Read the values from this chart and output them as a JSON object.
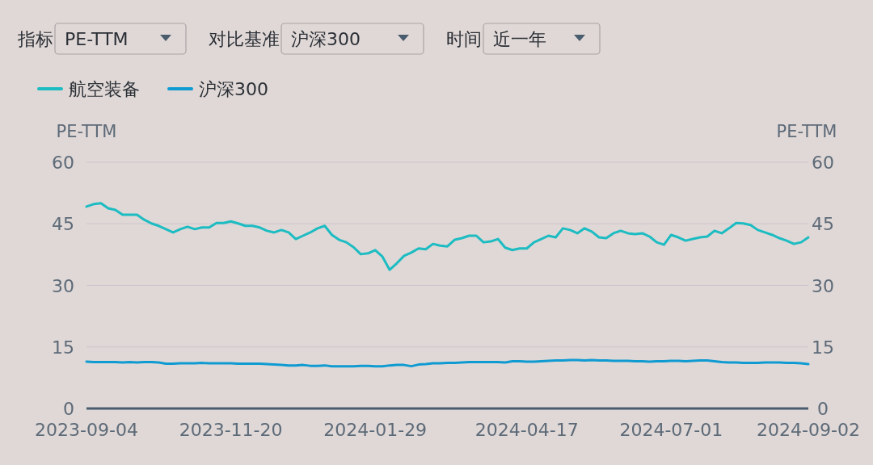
{
  "chart_data": {
    "type": "line",
    "annotations": [
      "指标",
      "PE-TTM",
      "对比基准",
      "沪深300",
      "时间",
      "近一年"
    ],
    "ylabel": "PE-TTM",
    "y2label": "PE-TTM",
    "categories": [
      "2023-09-04",
      null,
      null,
      null,
      null,
      null,
      null,
      null,
      null,
      null,
      null,
      null,
      null,
      null,
      null,
      null,
      null,
      null,
      null,
      null,
      "2023-11-20",
      null,
      null,
      null,
      null,
      null,
      null,
      null,
      null,
      null,
      null,
      null,
      null,
      null,
      null,
      null,
      null,
      null,
      null,
      null,
      "2024-01-29",
      null,
      null,
      null,
      null,
      null,
      null,
      null,
      null,
      null,
      null,
      null,
      null,
      null,
      null,
      null,
      null,
      null,
      null,
      null,
      null,
      "2024-04-17",
      null,
      null,
      null,
      null,
      null,
      null,
      null,
      null,
      null,
      null,
      null,
      null,
      null,
      null,
      null,
      null,
      null,
      null,
      null,
      "2024-07-01",
      null,
      null,
      null,
      null,
      null,
      null,
      null,
      null,
      null,
      null,
      null,
      null,
      null,
      null,
      null,
      null,
      null,
      null,
      "2024-09-02"
    ],
    "series": [
      {
        "name": "航空装备",
        "color": "#1cbcc2",
        "values": [
          49.2,
          49.8,
          50.0,
          48.8,
          48.4,
          47.2,
          47.2,
          47.2,
          46.0,
          45.1,
          44.5,
          43.7,
          42.9,
          43.7,
          44.3,
          43.7,
          44.1,
          44.1,
          45.2,
          45.2,
          45.6,
          45.1,
          44.5,
          44.5,
          44.1,
          43.3,
          42.9,
          43.5,
          42.9,
          41.3,
          42.1,
          42.9,
          43.9,
          44.5,
          42.3,
          41.1,
          40.5,
          39.3,
          37.6,
          37.8,
          38.6,
          37.0,
          33.8,
          35.4,
          37.2,
          38.0,
          39.0,
          38.8,
          40.1,
          39.7,
          39.5,
          41.1,
          41.5,
          42.1,
          42.1,
          40.5,
          40.7,
          41.3,
          39.2,
          38.6,
          39.0,
          39.0,
          40.5,
          41.3,
          42.1,
          41.7,
          43.9,
          43.5,
          42.7,
          43.9,
          43.1,
          41.7,
          41.5,
          42.7,
          43.3,
          42.7,
          42.5,
          42.7,
          41.9,
          40.5,
          39.9,
          42.3,
          41.7,
          40.9,
          41.3,
          41.7,
          41.9,
          43.3,
          42.7,
          43.9,
          45.2,
          45.1,
          44.7,
          43.5,
          42.9,
          42.3,
          41.5,
          40.9,
          40.1,
          40.5,
          41.7
        ]
      },
      {
        "name": "沪深300",
        "color": "#0f9bd2",
        "values": [
          11.4,
          11.3,
          11.3,
          11.3,
          11.3,
          11.2,
          11.3,
          11.2,
          11.3,
          11.3,
          11.2,
          10.9,
          10.9,
          11.0,
          11.0,
          11.0,
          11.1,
          11.0,
          11.0,
          11.0,
          11.0,
          10.9,
          10.9,
          10.9,
          10.9,
          10.8,
          10.7,
          10.6,
          10.5,
          10.5,
          10.6,
          10.4,
          10.4,
          10.5,
          10.3,
          10.3,
          10.3,
          10.3,
          10.4,
          10.4,
          10.3,
          10.3,
          10.5,
          10.6,
          10.6,
          10.3,
          10.7,
          10.8,
          11.0,
          11.0,
          11.1,
          11.1,
          11.2,
          11.3,
          11.3,
          11.3,
          11.3,
          11.3,
          11.2,
          11.5,
          11.5,
          11.4,
          11.4,
          11.5,
          11.6,
          11.7,
          11.7,
          11.8,
          11.8,
          11.7,
          11.8,
          11.7,
          11.7,
          11.6,
          11.6,
          11.6,
          11.5,
          11.5,
          11.4,
          11.5,
          11.5,
          11.6,
          11.6,
          11.5,
          11.6,
          11.7,
          11.7,
          11.5,
          11.3,
          11.2,
          11.2,
          11.1,
          11.1,
          11.1,
          11.2,
          11.2,
          11.2,
          11.1,
          11.1,
          11.0,
          10.8
        ]
      }
    ],
    "ylim": [
      0,
      60
    ],
    "yticks": [
      0,
      15,
      30,
      45,
      60
    ],
    "y2lim": [
      0,
      60
    ],
    "y2ticks": [
      0,
      15,
      30,
      45,
      60
    ],
    "grid": "y",
    "legend": "top left"
  }
}
